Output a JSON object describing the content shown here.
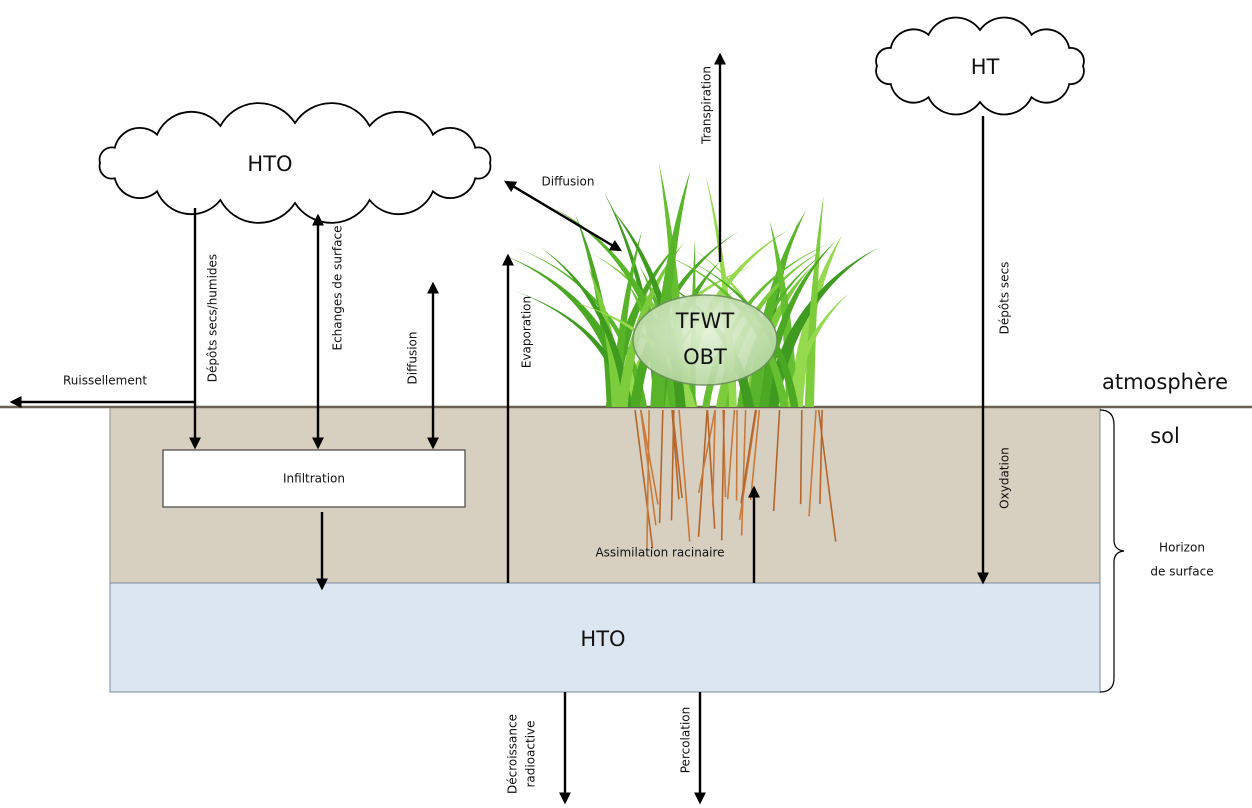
{
  "clouds": {
    "left": "HTO",
    "right": "HT"
  },
  "plant": {
    "line1": "TFWT",
    "line2": "OBT"
  },
  "groundwater": "HTO",
  "zones": {
    "atmosphere": "atmosphère",
    "soil": "sol",
    "horizon": [
      "Horizon",
      "de surface"
    ]
  },
  "processes": {
    "runoff": "Ruissellement",
    "deposition": "Dépôts secs/humides",
    "surface_exchange": "Echanges de surface",
    "soil_diffusion": "Diffusion",
    "evaporation": "Evaporation",
    "air_diffusion": "Diffusion",
    "transpiration": "Transpiration",
    "dry_deposition": "Dépôts secs",
    "oxidation": "Oxydation",
    "infiltration": "Infiltration",
    "root_uptake": "Assimilation racinaire",
    "decay": [
      "Décroissance",
      "radioactive"
    ],
    "percolation": "Percolation"
  }
}
